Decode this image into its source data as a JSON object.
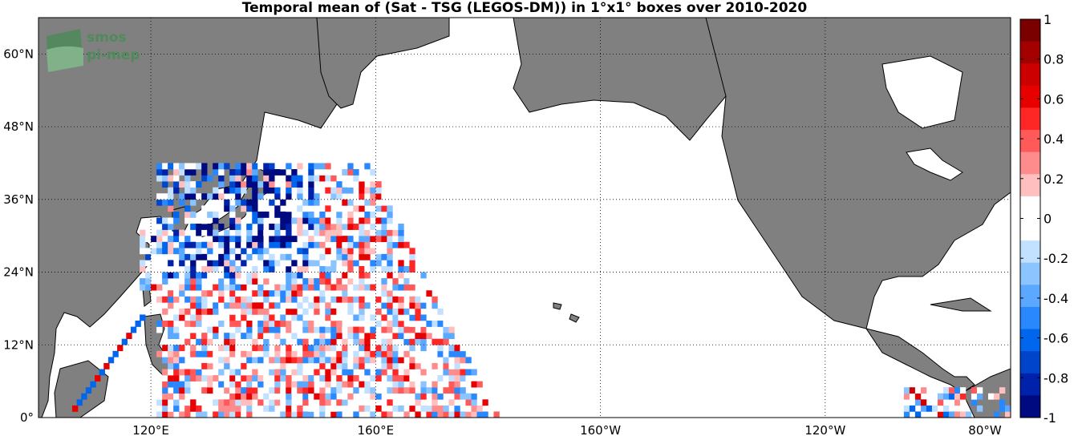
{
  "title": "Temporal mean of (Sat - TSG (LEGOS-DM)) in 1°x1° boxes over 2010-2020",
  "logo": {
    "line1": "smos",
    "line2": "pi-mep"
  },
  "map": {
    "projection": "equirectangular",
    "lon_range": [
      100,
      273
    ],
    "lat_range": [
      0,
      66
    ],
    "land_color": "#808080",
    "ocean_color": "#ffffff",
    "grid": "dotted"
  },
  "axes": {
    "y_ticks": [
      {
        "lat": 0,
        "label": "0°"
      },
      {
        "lat": 12,
        "label": "12°N"
      },
      {
        "lat": 24,
        "label": "24°N"
      },
      {
        "lat": 36,
        "label": "36°N"
      },
      {
        "lat": 48,
        "label": "48°N"
      },
      {
        "lat": 60,
        "label": "60°N"
      }
    ],
    "x_ticks": [
      {
        "lon": 120,
        "label": "120°E"
      },
      {
        "lon": 160,
        "label": "160°E"
      },
      {
        "lon": 200,
        "label": "160°W"
      },
      {
        "lon": 240,
        "label": "120°W"
      },
      {
        "lon": 280,
        "label": "80°W"
      }
    ]
  },
  "colorbar": {
    "range": [
      -1,
      1
    ],
    "ticks": [
      "1",
      "0.8",
      "0.6",
      "0.4",
      "0.2",
      "0",
      "-0.2",
      "-0.4",
      "-0.6",
      "-0.8",
      "-1"
    ],
    "colors": [
      "#7a0000",
      "#a30000",
      "#cc0000",
      "#e60000",
      "#ff2626",
      "#ff5959",
      "#ff8c8c",
      "#ffbfbf",
      "#ffffff",
      "#ffffff",
      "#c2e0ff",
      "#8cc4ff",
      "#5aa8ff",
      "#2a88ff",
      "#0066ee",
      "#0044cc",
      "#0022aa",
      "#000a80"
    ]
  }
}
